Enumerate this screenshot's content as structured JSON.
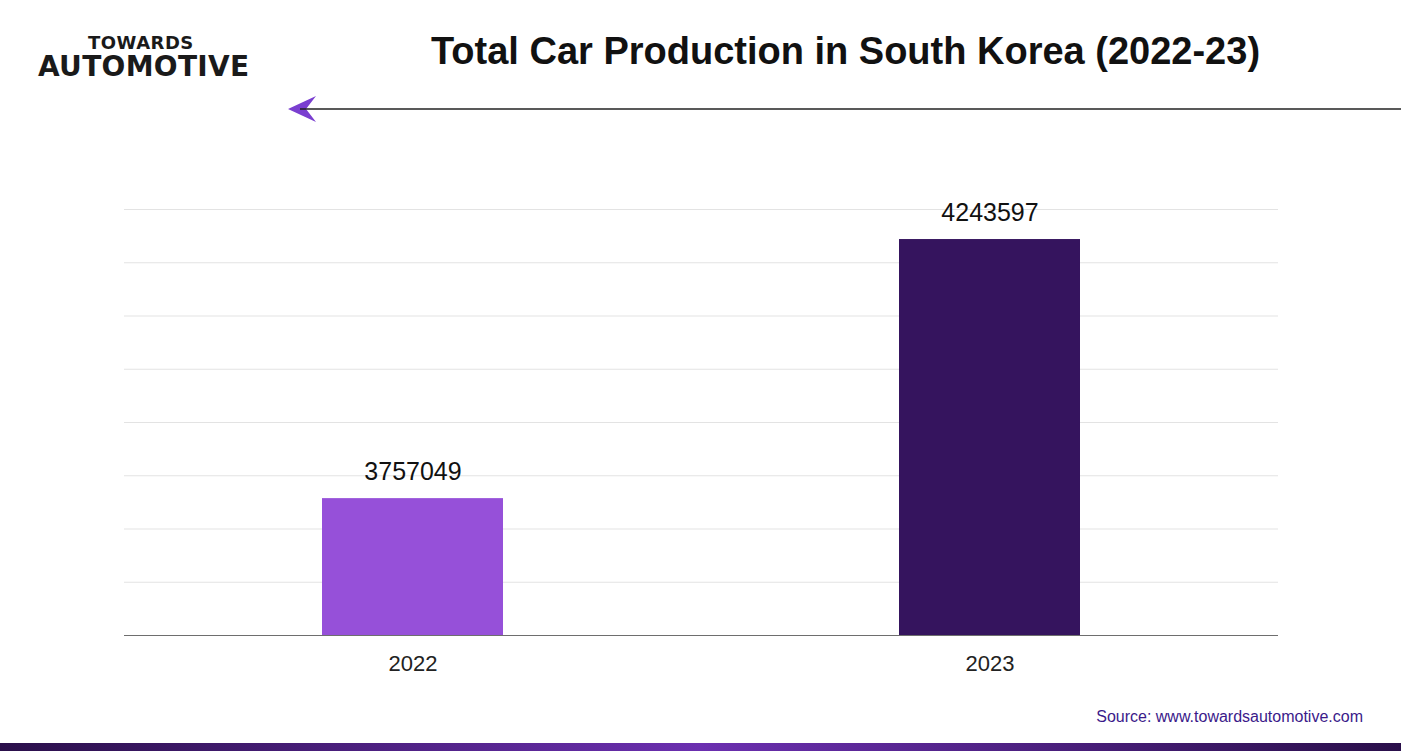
{
  "chart_data": {
    "type": "bar",
    "title": "Total Car Production in South Korea (2022-23)",
    "brand": [
      "TOWARDS",
      "AUTOMOTIVE"
    ],
    "source": "Source: www.towardsautomotive.com",
    "categories": [
      "2022",
      "2023"
    ],
    "values": [
      3757049,
      4243597
    ],
    "colors": [
      "#9650d9",
      "#35145e"
    ],
    "ylim": [
      3500000,
      4300000
    ],
    "yticks": [
      3500000,
      3600000,
      3700000,
      3800000,
      3900000,
      4000000,
      4100000,
      4200000,
      4300000
    ],
    "grid": true,
    "data_labels": true,
    "tick_labels": "x"
  }
}
